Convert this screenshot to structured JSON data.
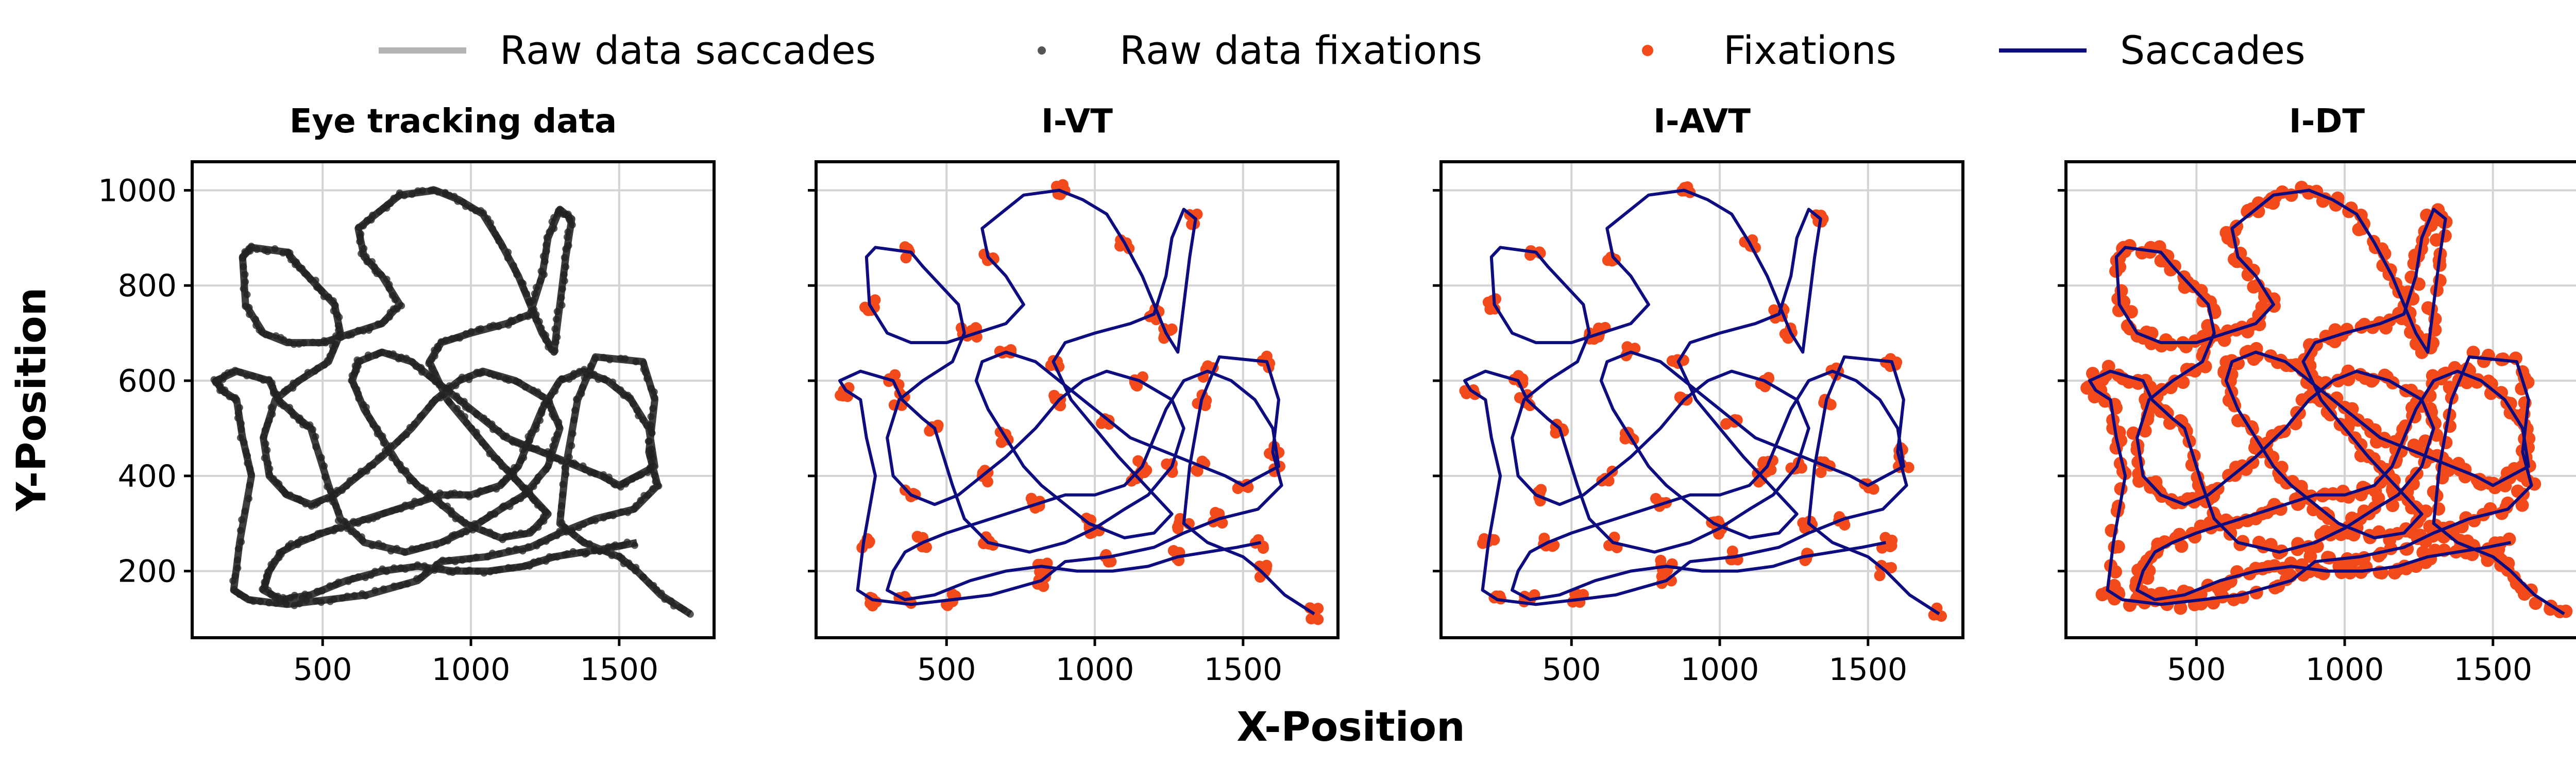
{
  "figure": {
    "xlabel": "X-Position",
    "ylabel": "Y-Position"
  },
  "legend": {
    "position": "top-center",
    "items": [
      {
        "label": "Raw data saccades",
        "marker": "line",
        "color": "#b3b3b3"
      },
      {
        "label": "Raw data fixations",
        "marker": "dot",
        "color": "#555555"
      },
      {
        "label": "Fixations",
        "marker": "dot",
        "color": "#f24a1a"
      },
      {
        "label": "Saccades",
        "marker": "line",
        "color": "#0d0d80"
      }
    ]
  },
  "colors": {
    "raw_trace": "#1c1c1c",
    "fixations": "#f24a1a",
    "saccades": "#0d0d80",
    "grid": "#d4d4d4"
  },
  "chart_data": [
    {
      "type": "line",
      "title": "Eye tracking data",
      "series": [
        "Raw data saccades",
        "Raw data fixations"
      ],
      "xlim": [
        60,
        1820
      ],
      "ylim": [
        60,
        1060
      ],
      "xticks": [
        500,
        1000,
        1500
      ],
      "yticks": [
        200,
        400,
        600,
        800,
        1000
      ],
      "show_ytick_labels": true,
      "grid": true,
      "fixation_density": "dense"
    },
    {
      "type": "line",
      "title": "I-VT",
      "series": [
        "Fixations",
        "Saccades"
      ],
      "xlim": [
        60,
        1820
      ],
      "ylim": [
        60,
        1060
      ],
      "xticks": [
        500,
        1000,
        1500
      ],
      "yticks": [
        200,
        400,
        600,
        800,
        1000
      ],
      "show_ytick_labels": false,
      "grid": true,
      "fixation_density": "sparse"
    },
    {
      "type": "line",
      "title": "I-AVT",
      "series": [
        "Fixations",
        "Saccades"
      ],
      "xlim": [
        60,
        1820
      ],
      "ylim": [
        60,
        1060
      ],
      "xticks": [
        500,
        1000,
        1500
      ],
      "yticks": [
        200,
        400,
        600,
        800,
        1000
      ],
      "show_ytick_labels": false,
      "grid": true,
      "fixation_density": "sparse"
    },
    {
      "type": "line",
      "title": "I-DT",
      "series": [
        "Fixations",
        "Saccades"
      ],
      "xlim": [
        60,
        1820
      ],
      "ylim": [
        60,
        1060
      ],
      "xticks": [
        500,
        1000,
        1500
      ],
      "yticks": [
        200,
        400,
        600,
        800,
        1000
      ],
      "show_ytick_labels": false,
      "grid": true,
      "fixation_density": "dense"
    }
  ],
  "gaze_path": [
    [
      1740,
      110
    ],
    [
      1640,
      150
    ],
    [
      1560,
      200
    ],
    [
      1500,
      230
    ],
    [
      1380,
      260
    ],
    [
      1300,
      300
    ],
    [
      1320,
      420
    ],
    [
      1360,
      560
    ],
    [
      1420,
      650
    ],
    [
      1580,
      640
    ],
    [
      1620,
      560
    ],
    [
      1600,
      450
    ],
    [
      1630,
      380
    ],
    [
      1550,
      330
    ],
    [
      1420,
      310
    ],
    [
      1300,
      280
    ],
    [
      1200,
      250
    ],
    [
      1050,
      230
    ],
    [
      900,
      220
    ],
    [
      820,
      180
    ],
    [
      650,
      150
    ],
    [
      520,
      140
    ],
    [
      380,
      130
    ],
    [
      250,
      140
    ],
    [
      200,
      160
    ],
    [
      220,
      260
    ],
    [
      260,
      400
    ],
    [
      230,
      480
    ],
    [
      210,
      560
    ],
    [
      160,
      580
    ],
    [
      140,
      600
    ],
    [
      210,
      620
    ],
    [
      320,
      600
    ],
    [
      350,
      560
    ],
    [
      420,
      520
    ],
    [
      460,
      500
    ],
    [
      520,
      380
    ],
    [
      560,
      310
    ],
    [
      640,
      260
    ],
    [
      780,
      240
    ],
    [
      900,
      260
    ],
    [
      1000,
      290
    ],
    [
      1100,
      330
    ],
    [
      1180,
      360
    ],
    [
      1260,
      420
    ],
    [
      1300,
      500
    ],
    [
      1260,
      560
    ],
    [
      1150,
      600
    ],
    [
      1040,
      620
    ],
    [
      960,
      600
    ],
    [
      880,
      560
    ],
    [
      800,
      500
    ],
    [
      700,
      440
    ],
    [
      620,
      400
    ],
    [
      540,
      360
    ],
    [
      460,
      340
    ],
    [
      380,
      360
    ],
    [
      320,
      400
    ],
    [
      300,
      480
    ],
    [
      340,
      560
    ],
    [
      420,
      600
    ],
    [
      520,
      640
    ],
    [
      560,
      700
    ],
    [
      540,
      760
    ],
    [
      480,
      800
    ],
    [
      420,
      840
    ],
    [
      380,
      870
    ],
    [
      260,
      880
    ],
    [
      230,
      860
    ],
    [
      240,
      760
    ],
    [
      300,
      700
    ],
    [
      380,
      680
    ],
    [
      500,
      680
    ],
    [
      600,
      700
    ],
    [
      700,
      720
    ],
    [
      760,
      760
    ],
    [
      700,
      820
    ],
    [
      640,
      860
    ],
    [
      620,
      920
    ],
    [
      700,
      960
    ],
    [
      760,
      990
    ],
    [
      880,
      1000
    ],
    [
      960,
      980
    ],
    [
      1040,
      950
    ],
    [
      1100,
      890
    ],
    [
      1160,
      820
    ],
    [
      1200,
      760
    ],
    [
      1240,
      700
    ],
    [
      1280,
      660
    ],
    [
      1300,
      760
    ],
    [
      1320,
      860
    ],
    [
      1340,
      940
    ],
    [
      1300,
      960
    ],
    [
      1260,
      900
    ],
    [
      1240,
      820
    ],
    [
      1200,
      740
    ],
    [
      1120,
      720
    ],
    [
      1000,
      700
    ],
    [
      900,
      680
    ],
    [
      860,
      640
    ],
    [
      920,
      560
    ],
    [
      1000,
      500
    ],
    [
      1080,
      440
    ],
    [
      1140,
      400
    ],
    [
      1200,
      360
    ],
    [
      1260,
      320
    ],
    [
      1200,
      280
    ],
    [
      1100,
      270
    ],
    [
      980,
      300
    ],
    [
      900,
      340
    ],
    [
      820,
      380
    ],
    [
      760,
      420
    ],
    [
      700,
      480
    ],
    [
      640,
      540
    ],
    [
      600,
      600
    ],
    [
      620,
      640
    ],
    [
      700,
      660
    ],
    [
      800,
      640
    ],
    [
      880,
      600
    ],
    [
      960,
      560
    ],
    [
      1040,
      520
    ],
    [
      1120,
      480
    ],
    [
      1200,
      460
    ],
    [
      1280,
      440
    ],
    [
      1360,
      420
    ],
    [
      1440,
      400
    ],
    [
      1500,
      380
    ],
    [
      1560,
      400
    ],
    [
      1620,
      420
    ],
    [
      1600,
      500
    ],
    [
      1540,
      560
    ],
    [
      1460,
      600
    ],
    [
      1380,
      620
    ],
    [
      1300,
      600
    ],
    [
      1240,
      540
    ],
    [
      1200,
      480
    ],
    [
      1160,
      420
    ],
    [
      1100,
      380
    ],
    [
      1000,
      360
    ],
    [
      900,
      360
    ],
    [
      800,
      340
    ],
    [
      700,
      320
    ],
    [
      600,
      300
    ],
    [
      500,
      280
    ],
    [
      420,
      260
    ],
    [
      360,
      240
    ],
    [
      320,
      200
    ],
    [
      300,
      160
    ],
    [
      360,
      140
    ],
    [
      460,
      150
    ],
    [
      580,
      180
    ],
    [
      700,
      200
    ],
    [
      820,
      210
    ],
    [
      940,
      200
    ],
    [
      1060,
      200
    ],
    [
      1180,
      210
    ],
    [
      1280,
      230
    ],
    [
      1380,
      240
    ],
    [
      1480,
      250
    ],
    [
      1560,
      260
    ]
  ],
  "fixation_points": [
    [
      1740,
      110
    ],
    [
      1560,
      200
    ],
    [
      1300,
      300
    ],
    [
      1360,
      560
    ],
    [
      1580,
      640
    ],
    [
      1600,
      450
    ],
    [
      1420,
      310
    ],
    [
      1050,
      230
    ],
    [
      820,
      180
    ],
    [
      520,
      140
    ],
    [
      250,
      140
    ],
    [
      220,
      260
    ],
    [
      160,
      580
    ],
    [
      320,
      600
    ],
    [
      460,
      500
    ],
    [
      640,
      260
    ],
    [
      1000,
      290
    ],
    [
      1260,
      420
    ],
    [
      1150,
      600
    ],
    [
      880,
      560
    ],
    [
      620,
      400
    ],
    [
      380,
      360
    ],
    [
      340,
      560
    ],
    [
      560,
      700
    ],
    [
      380,
      870
    ],
    [
      240,
      760
    ],
    [
      600,
      700
    ],
    [
      640,
      860
    ],
    [
      880,
      1000
    ],
    [
      1100,
      890
    ],
    [
      1240,
      700
    ],
    [
      1340,
      940
    ],
    [
      1200,
      740
    ],
    [
      860,
      640
    ],
    [
      1140,
      400
    ],
    [
      980,
      300
    ],
    [
      700,
      480
    ],
    [
      700,
      660
    ],
    [
      1040,
      520
    ],
    [
      1360,
      420
    ],
    [
      1620,
      420
    ],
    [
      1380,
      620
    ],
    [
      1160,
      420
    ],
    [
      800,
      340
    ],
    [
      420,
      260
    ],
    [
      360,
      140
    ],
    [
      820,
      210
    ],
    [
      1280,
      230
    ],
    [
      1560,
      260
    ],
    [
      1500,
      380
    ]
  ]
}
